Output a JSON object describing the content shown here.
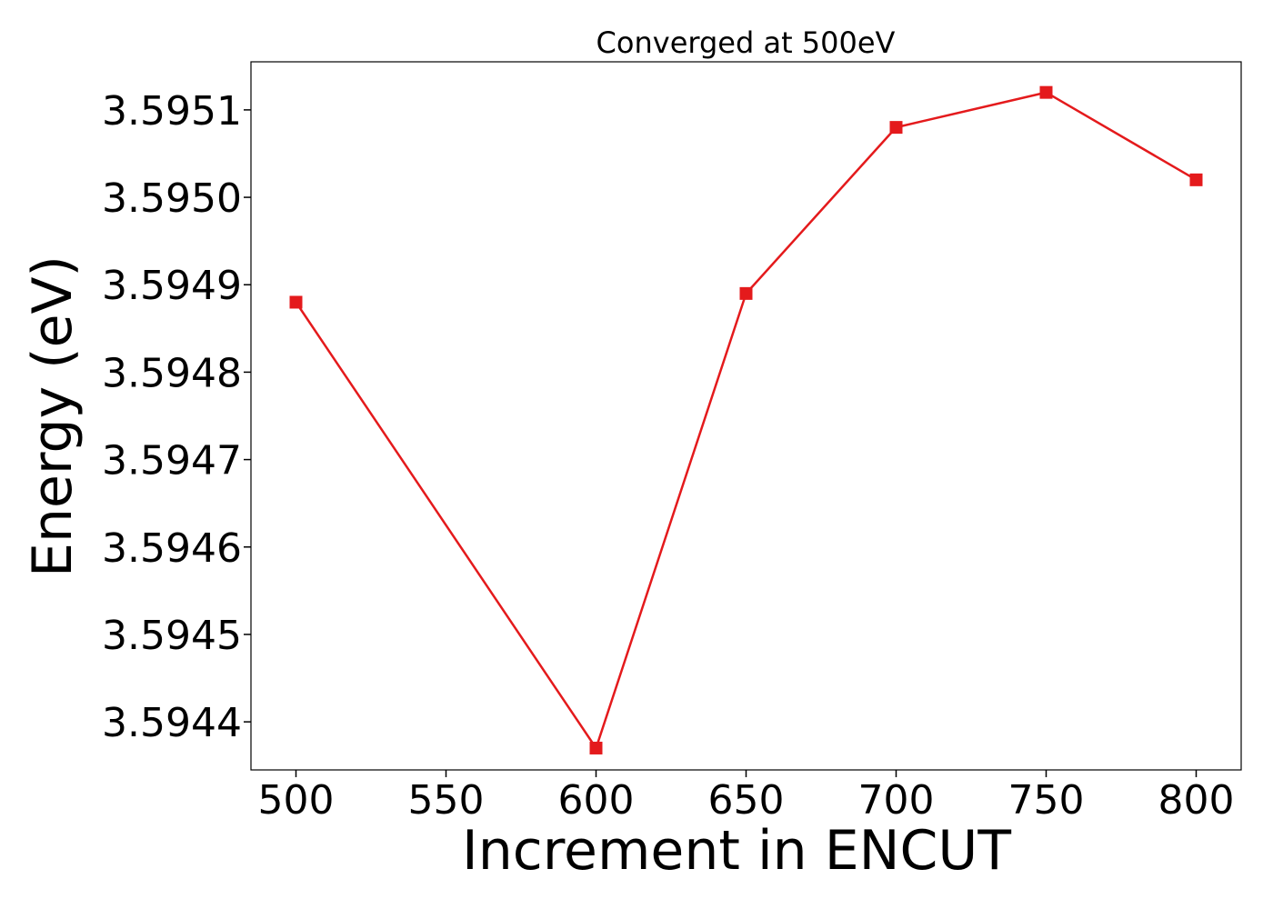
{
  "chart_data": {
    "type": "line",
    "title": "Converged at 500eV",
    "xlabel": "Increment in ENCUT",
    "ylabel": "Energy (eV)",
    "x": [
      500,
      600,
      650,
      700,
      750,
      800
    ],
    "series": [
      {
        "values": [
          3.59488,
          3.59437,
          3.59489,
          3.59508,
          3.59512,
          3.59502
        ],
        "color": "#e41a1c",
        "marker": "square"
      }
    ],
    "xlim": [
      485,
      815
    ],
    "ylim": [
      3.594345,
      3.595155
    ],
    "xticks": [
      500,
      550,
      600,
      650,
      700,
      750,
      800
    ],
    "xtick_labels": [
      "500",
      "550",
      "600",
      "650",
      "700",
      "750",
      "800"
    ],
    "yticks": [
      3.5944,
      3.5945,
      3.5946,
      3.5947,
      3.5948,
      3.5949,
      3.595,
      3.5951
    ],
    "ytick_labels": [
      "3.5944",
      "3.5945",
      "3.5946",
      "3.5947",
      "3.5948",
      "3.5949",
      "3.5950",
      "3.5951"
    ],
    "grid": false,
    "legend": "none"
  }
}
